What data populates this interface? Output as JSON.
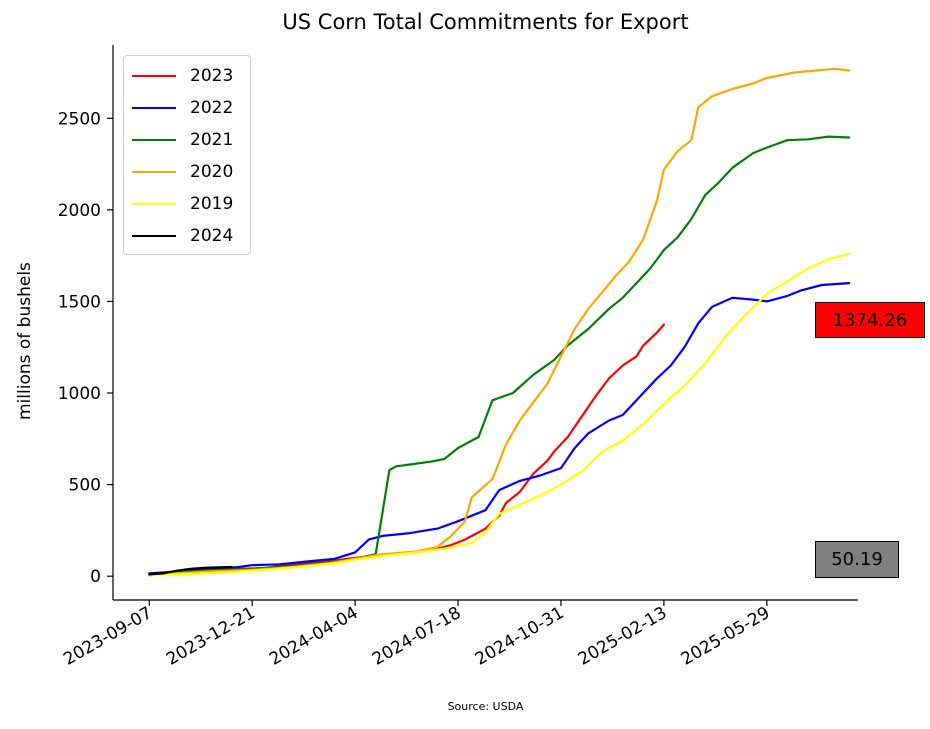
{
  "chart_data": {
    "type": "line",
    "title": "US Corn Total Commitments for Export",
    "ylabel": "millions of bushels",
    "xlabel": "",
    "source": "Source: USDA",
    "ylim": [
      -130,
      2900
    ],
    "yticks": [
      0,
      500,
      1000,
      1500,
      2000,
      2500
    ],
    "x_ticks": [
      "2023-09-07",
      "2023-12-21",
      "2024-04-04",
      "2024-07-18",
      "2024-10-31",
      "2025-02-13",
      "2025-05-29"
    ],
    "x_range": [
      "2023-08-01",
      "2025-08-30"
    ],
    "grid": false,
    "legend_position": "top-left",
    "series": [
      {
        "name": "2023",
        "color": "#ff0000",
        "points": [
          [
            "2023-09-07",
            5
          ],
          [
            "2023-10-05",
            20
          ],
          [
            "2023-11-02",
            35
          ],
          [
            "2023-12-07",
            40
          ],
          [
            "2024-01-04",
            45
          ],
          [
            "2024-02-01",
            65
          ],
          [
            "2024-03-07",
            80
          ],
          [
            "2024-04-04",
            100
          ],
          [
            "2024-05-02",
            115
          ],
          [
            "2024-06-06",
            130
          ],
          [
            "2024-06-27",
            150
          ],
          [
            "2024-07-11",
            170
          ],
          [
            "2024-07-25",
            200
          ],
          [
            "2024-08-15",
            260
          ],
          [
            "2024-08-29",
            330
          ],
          [
            "2024-09-05",
            400
          ],
          [
            "2024-09-19",
            460
          ],
          [
            "2024-10-03",
            560
          ],
          [
            "2024-10-17",
            630
          ],
          [
            "2024-10-24",
            680
          ],
          [
            "2024-11-07",
            760
          ],
          [
            "2024-11-21",
            870
          ],
          [
            "2024-12-05",
            980
          ],
          [
            "2024-12-19",
            1080
          ],
          [
            "2025-01-02",
            1150
          ],
          [
            "2025-01-16",
            1200
          ],
          [
            "2025-01-23",
            1260
          ],
          [
            "2025-02-06",
            1330
          ],
          [
            "2025-02-13",
            1374.26
          ]
        ]
      },
      {
        "name": "2022",
        "color": "#0000ff",
        "points": [
          [
            "2023-09-07",
            15
          ],
          [
            "2023-10-05",
            25
          ],
          [
            "2023-11-02",
            35
          ],
          [
            "2023-12-07",
            50
          ],
          [
            "2023-12-21",
            60
          ],
          [
            "2024-01-18",
            65
          ],
          [
            "2024-02-15",
            80
          ],
          [
            "2024-03-14",
            95
          ],
          [
            "2024-04-04",
            130
          ],
          [
            "2024-04-18",
            200
          ],
          [
            "2024-05-02",
            220
          ],
          [
            "2024-05-30",
            235
          ],
          [
            "2024-06-27",
            260
          ],
          [
            "2024-07-18",
            300
          ],
          [
            "2024-08-01",
            330
          ],
          [
            "2024-08-15",
            360
          ],
          [
            "2024-08-29",
            470
          ],
          [
            "2024-09-19",
            520
          ],
          [
            "2024-10-10",
            550
          ],
          [
            "2024-10-31",
            590
          ],
          [
            "2024-11-14",
            700
          ],
          [
            "2024-11-28",
            780
          ],
          [
            "2024-12-19",
            850
          ],
          [
            "2025-01-02",
            880
          ],
          [
            "2025-01-16",
            960
          ],
          [
            "2025-02-06",
            1080
          ],
          [
            "2025-02-20",
            1150
          ],
          [
            "2025-03-06",
            1250
          ],
          [
            "2025-03-20",
            1380
          ],
          [
            "2025-04-03",
            1470
          ],
          [
            "2025-04-24",
            1520
          ],
          [
            "2025-05-15",
            1510
          ],
          [
            "2025-05-29",
            1500
          ],
          [
            "2025-06-19",
            1530
          ],
          [
            "2025-07-03",
            1560
          ],
          [
            "2025-07-24",
            1590
          ],
          [
            "2025-08-21",
            1600
          ]
        ]
      },
      {
        "name": "2021",
        "color": "#008000",
        "points": [
          [
            "2023-09-07",
            5
          ],
          [
            "2023-10-05",
            20
          ],
          [
            "2023-11-02",
            30
          ],
          [
            "2023-12-21",
            40
          ],
          [
            "2024-02-01",
            55
          ],
          [
            "2024-03-07",
            75
          ],
          [
            "2024-04-04",
            95
          ],
          [
            "2024-04-25",
            120
          ],
          [
            "2024-05-09",
            580
          ],
          [
            "2024-05-16",
            600
          ],
          [
            "2024-05-30",
            610
          ],
          [
            "2024-06-20",
            625
          ],
          [
            "2024-07-04",
            640
          ],
          [
            "2024-07-18",
            700
          ],
          [
            "2024-08-08",
            760
          ],
          [
            "2024-08-22",
            960
          ],
          [
            "2024-09-12",
            1000
          ],
          [
            "2024-10-03",
            1100
          ],
          [
            "2024-10-24",
            1180
          ],
          [
            "2024-11-07",
            1260
          ],
          [
            "2024-11-28",
            1350
          ],
          [
            "2024-12-19",
            1460
          ],
          [
            "2025-01-02",
            1520
          ],
          [
            "2025-01-16",
            1600
          ],
          [
            "2025-01-30",
            1680
          ],
          [
            "2025-02-13",
            1780
          ],
          [
            "2025-02-27",
            1850
          ],
          [
            "2025-03-13",
            1950
          ],
          [
            "2025-03-27",
            2080
          ],
          [
            "2025-04-10",
            2150
          ],
          [
            "2025-04-24",
            2230
          ],
          [
            "2025-05-15",
            2310
          ],
          [
            "2025-05-29",
            2340
          ],
          [
            "2025-06-19",
            2380
          ],
          [
            "2025-07-10",
            2385
          ],
          [
            "2025-07-31",
            2400
          ],
          [
            "2025-08-21",
            2395
          ]
        ]
      },
      {
        "name": "2020",
        "color": "#ffa500",
        "points": [
          [
            "2023-09-07",
            5
          ],
          [
            "2023-10-05",
            15
          ],
          [
            "2023-11-02",
            25
          ],
          [
            "2023-12-21",
            35
          ],
          [
            "2024-02-01",
            50
          ],
          [
            "2024-03-07",
            70
          ],
          [
            "2024-04-04",
            95
          ],
          [
            "2024-05-02",
            120
          ],
          [
            "2024-06-06",
            135
          ],
          [
            "2024-06-27",
            160
          ],
          [
            "2024-07-11",
            220
          ],
          [
            "2024-07-25",
            300
          ],
          [
            "2024-08-01",
            430
          ],
          [
            "2024-08-22",
            530
          ],
          [
            "2024-09-05",
            720
          ],
          [
            "2024-09-19",
            850
          ],
          [
            "2024-10-03",
            950
          ],
          [
            "2024-10-17",
            1050
          ],
          [
            "2024-10-31",
            1200
          ],
          [
            "2024-11-14",
            1350
          ],
          [
            "2024-11-28",
            1460
          ],
          [
            "2024-12-12",
            1550
          ],
          [
            "2024-12-26",
            1640
          ],
          [
            "2025-01-09",
            1720
          ],
          [
            "2025-01-23",
            1840
          ],
          [
            "2025-02-06",
            2050
          ],
          [
            "2025-02-13",
            2220
          ],
          [
            "2025-02-27",
            2320
          ],
          [
            "2025-03-13",
            2380
          ],
          [
            "2025-03-20",
            2560
          ],
          [
            "2025-04-03",
            2620
          ],
          [
            "2025-04-24",
            2660
          ],
          [
            "2025-05-15",
            2690
          ],
          [
            "2025-05-29",
            2720
          ],
          [
            "2025-06-26",
            2750
          ],
          [
            "2025-07-17",
            2760
          ],
          [
            "2025-08-07",
            2770
          ],
          [
            "2025-08-21",
            2760
          ]
        ]
      },
      {
        "name": "2019",
        "color": "#ffff00",
        "points": [
          [
            "2023-09-07",
            5
          ],
          [
            "2023-10-05",
            10
          ],
          [
            "2023-11-02",
            15
          ],
          [
            "2023-12-07",
            25
          ],
          [
            "2024-01-04",
            35
          ],
          [
            "2024-02-15",
            55
          ],
          [
            "2024-03-14",
            70
          ],
          [
            "2024-04-04",
            90
          ],
          [
            "2024-05-02",
            110
          ],
          [
            "2024-06-06",
            130
          ],
          [
            "2024-07-04",
            150
          ],
          [
            "2024-08-01",
            180
          ],
          [
            "2024-08-15",
            240
          ],
          [
            "2024-08-29",
            340
          ],
          [
            "2024-09-19",
            390
          ],
          [
            "2024-10-10",
            440
          ],
          [
            "2024-10-31",
            500
          ],
          [
            "2024-11-21",
            570
          ],
          [
            "2024-12-12",
            680
          ],
          [
            "2025-01-02",
            740
          ],
          [
            "2025-01-23",
            830
          ],
          [
            "2025-02-13",
            940
          ],
          [
            "2025-03-06",
            1040
          ],
          [
            "2025-03-27",
            1160
          ],
          [
            "2025-04-17",
            1310
          ],
          [
            "2025-05-08",
            1430
          ],
          [
            "2025-05-29",
            1540
          ],
          [
            "2025-06-19",
            1610
          ],
          [
            "2025-07-10",
            1680
          ],
          [
            "2025-07-31",
            1730
          ],
          [
            "2025-08-21",
            1760
          ]
        ]
      },
      {
        "name": "2024",
        "color": "#000000",
        "points": [
          [
            "2023-09-07",
            10
          ],
          [
            "2023-09-21",
            15
          ],
          [
            "2023-10-05",
            30
          ],
          [
            "2023-10-19",
            40
          ],
          [
            "2023-11-02",
            45
          ],
          [
            "2023-11-16",
            48
          ],
          [
            "2023-11-30",
            50.19
          ]
        ]
      }
    ]
  },
  "badges": {
    "latest_2023": "1374.26",
    "latest_2024": "50.19",
    "latest_2023_color": "#ff0000",
    "latest_2024_color": "#808080"
  }
}
